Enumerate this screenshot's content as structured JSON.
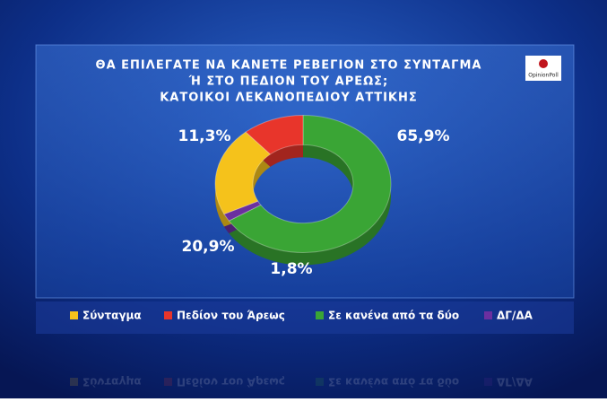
{
  "chart_data": {
    "type": "pie",
    "title": [
      "ΘΑ ΕΠΙΛΕΓΑΤΕ ΝΑ ΚΑΝΕΤΕ ΡΕΒΕΓΙΟΝ ΣΤΟ ΣΥΝΤΑΓΜΑ",
      "Ή ΣΤΟ ΠΕΔΙΟΝ ΤΟΥ ΑΡΕΩΣ;",
      "ΚΑΤΟΙΚΟΙ ΛΕΚΑΝΟΠΕΔΙΟΥ ΑΤΤΙΚΗΣ"
    ],
    "source": "OpinionPoll",
    "categories": [
      "Σύνταγμα",
      "Πεδίον του Άρεως",
      "Σε κανένα από τα δύο",
      "ΔΓ/ΔΑ"
    ],
    "values": [
      20.9,
      11.3,
      65.9,
      1.8
    ],
    "value_labels": [
      "20,9%",
      "11,3%",
      "65,9%",
      "1,8%"
    ],
    "colors": [
      "#f5c21b",
      "#e8352b",
      "#3aa535",
      "#6b2fa0"
    ]
  }
}
